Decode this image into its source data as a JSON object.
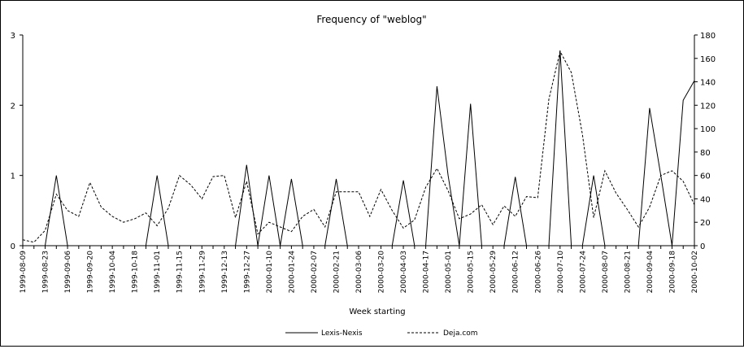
{
  "chart_data": {
    "type": "line",
    "title": "Frequency of \"weblog\"",
    "xlabel": "Week starting",
    "ylabel_left": "",
    "ylabel_right": "",
    "ylim_left": [
      0,
      3
    ],
    "ylim_right": [
      0,
      180
    ],
    "yticks_left": [
      0,
      1,
      2,
      3
    ],
    "yticks_right": [
      0,
      20,
      40,
      60,
      80,
      100,
      120,
      140,
      160,
      180
    ],
    "grid": false,
    "legend_position": "bottom-center",
    "x": [
      "1999-08-09",
      "1999-08-16",
      "1999-08-23",
      "1999-08-30",
      "1999-09-06",
      "1999-09-13",
      "1999-09-20",
      "1999-09-27",
      "1999-10-04",
      "1999-10-11",
      "1999-10-18",
      "1999-10-25",
      "1999-11-01",
      "1999-11-08",
      "1999-11-15",
      "1999-11-22",
      "1999-11-29",
      "1999-12-06",
      "1999-12-13",
      "1999-12-20",
      "1999-12-27",
      "2000-01-03",
      "2000-01-10",
      "2000-01-17",
      "2000-01-24",
      "2000-01-31",
      "2000-02-07",
      "2000-02-14",
      "2000-02-21",
      "2000-02-28",
      "2000-03-06",
      "2000-03-13",
      "2000-03-20",
      "2000-03-27",
      "2000-04-03",
      "2000-04-10",
      "2000-04-17",
      "2000-04-24",
      "2000-05-01",
      "2000-05-08",
      "2000-05-15",
      "2000-05-22",
      "2000-05-29",
      "2000-06-05",
      "2000-06-12",
      "2000-06-19",
      "2000-06-26",
      "2000-07-03",
      "2000-07-10",
      "2000-07-17",
      "2000-07-24",
      "2000-07-31",
      "2000-08-07",
      "2000-08-14",
      "2000-08-21",
      "2000-08-28",
      "2000-09-04",
      "2000-09-11",
      "2000-09-18",
      "2000-09-25",
      "2000-10-02"
    ],
    "xtick_labels": [
      "1999-08-09",
      "1999-08-23",
      "1999-09-06",
      "1999-09-20",
      "1999-10-04",
      "1999-10-18",
      "1999-11-01",
      "1999-11-15",
      "1999-11-29",
      "1999-12-13",
      "1999-12-27",
      "2000-01-10",
      "2000-01-24",
      "2000-02-07",
      "2000-02-21",
      "2000-03-06",
      "2000-03-20",
      "2000-04-03",
      "2000-04-17",
      "2000-05-01",
      "2000-05-15",
      "2000-05-29",
      "2000-06-12",
      "2000-06-26",
      "2000-07-10",
      "2000-07-24",
      "2000-08-07",
      "2000-08-21",
      "2000-09-04",
      "2000-09-18",
      "2000-10-02"
    ],
    "series": [
      {
        "name": "Lexis-Nexis",
        "axis": "left",
        "style": "solid",
        "color": "#000000",
        "values": [
          0,
          0,
          0,
          1,
          0,
          0,
          0,
          0,
          0,
          0,
          0,
          0,
          1,
          0,
          0,
          0,
          0,
          0,
          0,
          0,
          1.15,
          0,
          1,
          0,
          0.95,
          0,
          0,
          0,
          0.95,
          0,
          0,
          0,
          0,
          0,
          0.93,
          0,
          0,
          2.27,
          1,
          0,
          2.02,
          0,
          0,
          0,
          0.98,
          0,
          0,
          0,
          2.78,
          0,
          0,
          1,
          0,
          0,
          0,
          0,
          1.96,
          1,
          0,
          2.07,
          2.35
        ]
      },
      {
        "name": "Deja.com",
        "axis": "right",
        "style": "dashed",
        "color": "#000000",
        "values": [
          5,
          3,
          13,
          44,
          30,
          25,
          54,
          33,
          25,
          20,
          23,
          28,
          17,
          32,
          60,
          52,
          40,
          59,
          60,
          24,
          55,
          10,
          20,
          16,
          12,
          25,
          31,
          16,
          46,
          46,
          46,
          25,
          48,
          30,
          15,
          22,
          50,
          66,
          47,
          23,
          27,
          35,
          18,
          34,
          25,
          42,
          41,
          125,
          166,
          148,
          95,
          24,
          64,
          45,
          31,
          16,
          33,
          60,
          64,
          55,
          35
        ]
      }
    ]
  }
}
